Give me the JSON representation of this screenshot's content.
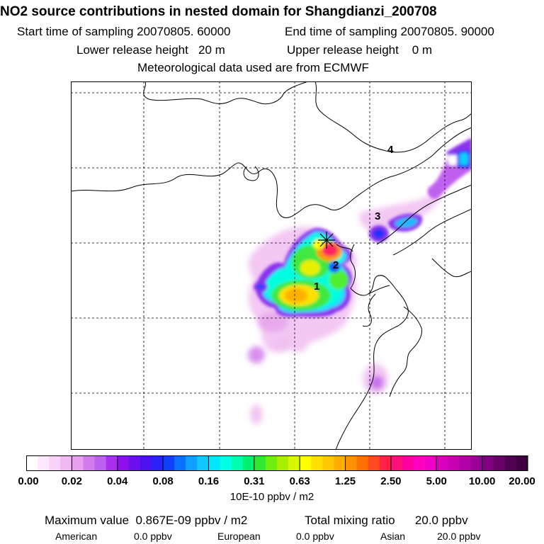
{
  "header": {
    "title": "NO2 source contributions in nested domain for Shangdianzi_200708",
    "start_label": "Start time of sampling",
    "start_value": "20070805. 60000",
    "end_label": "End time of sampling",
    "end_value": "20070805. 90000",
    "lower_label": "Lower release height",
    "lower_value": "20 m",
    "upper_label": "Upper release height",
    "upper_value": "0 m",
    "met": "Meteorological data used are from ECMWF"
  },
  "map": {
    "region_labels": [
      "1",
      "2",
      "3",
      "4"
    ],
    "receptor_marker": "receptor-star"
  },
  "colorbar": {
    "colors": [
      "#ffffff",
      "#fde8fd",
      "#f8d2f8",
      "#f0b8f0",
      "#e6a0ee",
      "#d27aee",
      "#c060f0",
      "#a830ee",
      "#8c10ec",
      "#6a10ee",
      "#4a10f0",
      "#2a20f8",
      "#1040ff",
      "#0a70ff",
      "#10a0ff",
      "#10c8ff",
      "#00e8ff",
      "#00ffe6",
      "#00ffb0",
      "#00f070",
      "#30e830",
      "#70ee10",
      "#a8f000",
      "#d8f800",
      "#ffff00",
      "#ffe000",
      "#ffc800",
      "#ffae00",
      "#ff9200",
      "#ff7000",
      "#ff4a20",
      "#ff2048",
      "#ff1078",
      "#ff00a0",
      "#ff00c0",
      "#ee00c8",
      "#dc00c0",
      "#c800b4",
      "#b000a8",
      "#980098",
      "#800080",
      "#680068",
      "#500050",
      "#3e003e"
    ],
    "tick_labels": [
      "0.00",
      "0.02",
      "0.04",
      "0.08",
      "0.16",
      "0.31",
      "0.63",
      "1.25",
      "2.50",
      "5.00",
      "10.00",
      "20.00"
    ],
    "units": "10E-10 ppbv / m2"
  },
  "footer": {
    "max_label": "Maximum value",
    "max_value": "0.867E-09 ppbv / m2",
    "total_label": "Total mixing ratio",
    "total_value": "20.0 ppbv",
    "american_label": "American",
    "american_value": "0.0 ppbv",
    "european_label": "European",
    "european_value": "0.0 ppbv",
    "asian_label": "Asian",
    "asian_value": "20.0 ppbv"
  }
}
